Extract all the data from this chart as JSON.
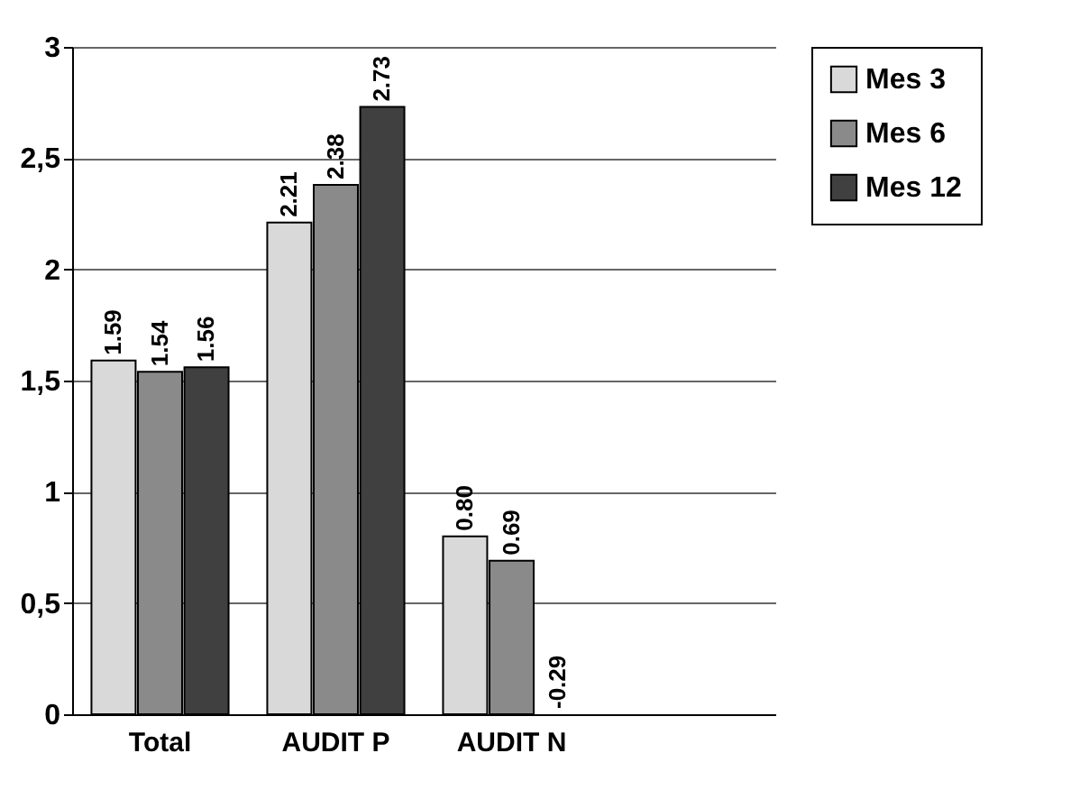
{
  "chart_data": {
    "type": "bar",
    "categories": [
      "Total",
      "AUDIT P",
      "AUDIT N",
      null
    ],
    "series": [
      {
        "name": "Mes 3",
        "color": "#d9d9d9",
        "values": [
          1.59,
          2.21,
          0.8,
          null
        ],
        "value_labels": [
          "1.59",
          "2.21",
          "0.80",
          null
        ]
      },
      {
        "name": "Mes 6",
        "color": "#8a8a8a",
        "values": [
          1.54,
          2.38,
          0.69,
          null
        ],
        "value_labels": [
          "1.54",
          "2.38",
          "0.69",
          null
        ]
      },
      {
        "name": "Mes 12",
        "color": "#404040",
        "values": [
          1.56,
          2.73,
          null,
          null
        ],
        "value_labels": [
          "1.56",
          "2.73",
          "-0.29",
          null
        ]
      }
    ],
    "ylim": [
      0,
      3
    ],
    "yticks": [
      {
        "value": 0,
        "label": "0"
      },
      {
        "value": 0.5,
        "label": "0,5"
      },
      {
        "value": 1,
        "label": "1"
      },
      {
        "value": 1.5,
        "label": "1,5"
      },
      {
        "value": 2,
        "label": "2"
      },
      {
        "value": 2.5,
        "label": "2,5"
      },
      {
        "value": 3,
        "label": "3"
      }
    ],
    "grid": "y",
    "legend": "right"
  }
}
